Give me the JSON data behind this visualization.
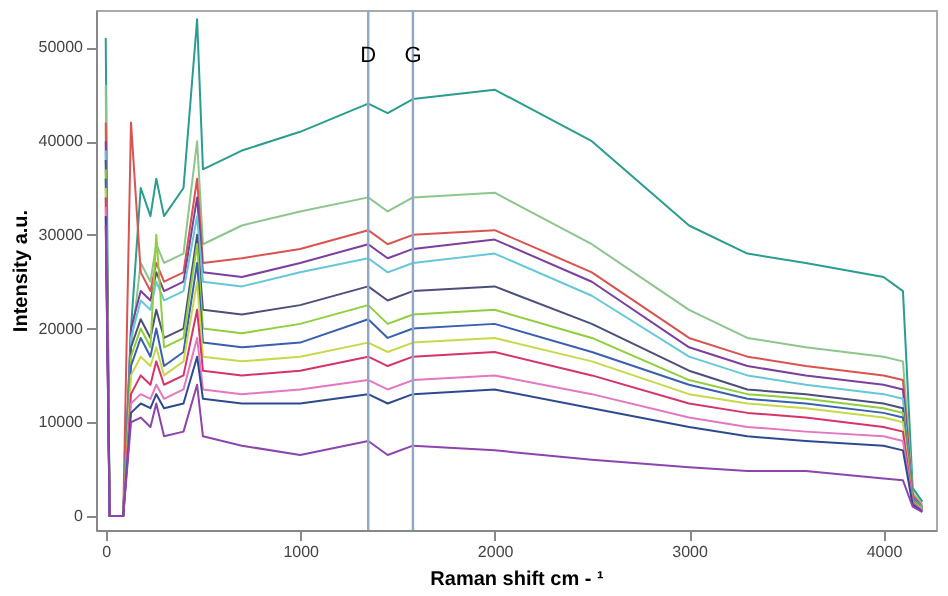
{
  "chart_data": {
    "type": "line",
    "xlabel": "Raman shift cm - ¹",
    "ylabel": "Intensity a.u.",
    "x": [
      0,
      20,
      90,
      130,
      180,
      230,
      260,
      300,
      400,
      470,
      500,
      700,
      1000,
      1350,
      1450,
      1580,
      2000,
      2500,
      3000,
      3300,
      3600,
      4000,
      4100,
      4150,
      4200
    ],
    "xlim": [
      -50,
      4270
    ],
    "xticks": [
      0,
      1000,
      2000,
      3000,
      4000
    ],
    "ylim": [
      -1500,
      54000
    ],
    "yticks": [
      0,
      10000,
      20000,
      30000,
      40000,
      50000
    ],
    "grid": false,
    "ref_lines": [
      {
        "axis": "x",
        "value": 1350,
        "label": "D",
        "color": "#8fa8c8"
      },
      {
        "axis": "x",
        "value": 1580,
        "label": "G",
        "color": "#8fa8c8"
      }
    ],
    "series": [
      {
        "color": "#2a9d8f",
        "values": [
          51000,
          0,
          0,
          20000,
          35000,
          32000,
          36000,
          32000,
          35000,
          53000,
          37000,
          39000,
          41000,
          44000,
          43000,
          44500,
          45500,
          40000,
          31000,
          28000,
          27000,
          25500,
          24000,
          3000,
          1500
        ]
      },
      {
        "color": "#8cc68c",
        "values": [
          46000,
          0,
          0,
          18000,
          27000,
          25000,
          29000,
          27000,
          28000,
          40000,
          29000,
          31000,
          32500,
          34000,
          32500,
          34000,
          34500,
          29000,
          22000,
          19000,
          18000,
          17000,
          16500,
          2500,
          1200
        ]
      },
      {
        "color": "#d9534f",
        "values": [
          42000,
          0,
          0,
          42000,
          26000,
          24000,
          27000,
          25000,
          26000,
          36000,
          27000,
          27500,
          28500,
          30500,
          29000,
          30000,
          30500,
          26000,
          19000,
          17000,
          16000,
          15000,
          14500,
          2200,
          1000
        ]
      },
      {
        "color": "#7b3f9e",
        "values": [
          40000,
          0,
          0,
          20000,
          24000,
          23000,
          26000,
          24000,
          25000,
          34000,
          26000,
          25500,
          27000,
          29000,
          27500,
          28500,
          29500,
          25000,
          18000,
          16000,
          15000,
          14000,
          13500,
          2000,
          900
        ]
      },
      {
        "color": "#66c7d9",
        "values": [
          39000,
          0,
          0,
          19000,
          23000,
          22000,
          25000,
          23000,
          24000,
          32000,
          25000,
          24500,
          26000,
          27500,
          26000,
          27000,
          28000,
          23500,
          17000,
          15000,
          14000,
          13000,
          12500,
          1900,
          900
        ]
      },
      {
        "color": "#4b4f7a",
        "values": [
          38000,
          0,
          0,
          18000,
          21000,
          19000,
          22000,
          19000,
          20000,
          30000,
          22000,
          21500,
          22500,
          24500,
          23000,
          24000,
          24500,
          20500,
          15500,
          13500,
          13000,
          12000,
          11500,
          1800,
          800
        ]
      },
      {
        "color": "#8fcf3c",
        "values": [
          37000,
          0,
          0,
          17000,
          20000,
          18000,
          30000,
          18000,
          19000,
          29000,
          20000,
          19500,
          20500,
          22500,
          20500,
          21500,
          22000,
          19000,
          14500,
          13000,
          12500,
          11500,
          11000,
          1700,
          800
        ]
      },
      {
        "color": "#3a5fb0",
        "values": [
          36000,
          0,
          0,
          16000,
          19000,
          17000,
          20000,
          16000,
          17500,
          27000,
          18500,
          18000,
          18500,
          21000,
          19000,
          20000,
          20500,
          17500,
          14000,
          12500,
          12000,
          11000,
          10500,
          1600,
          700
        ]
      },
      {
        "color": "#c7d94a",
        "values": [
          35000,
          0,
          0,
          15000,
          17000,
          16000,
          18000,
          15000,
          16500,
          25000,
          17000,
          16500,
          17000,
          18500,
          17500,
          18500,
          19000,
          16500,
          13000,
          12000,
          11500,
          10500,
          10000,
          1500,
          700
        ]
      },
      {
        "color": "#d6336c",
        "values": [
          34000,
          0,
          0,
          13000,
          15000,
          14000,
          16500,
          14000,
          15000,
          22000,
          15500,
          15000,
          15500,
          17000,
          16000,
          17000,
          17500,
          15000,
          12000,
          11000,
          10500,
          9500,
          9000,
          1400,
          600
        ]
      },
      {
        "color": "#e377c2",
        "values": [
          33000,
          0,
          0,
          12000,
          13000,
          12500,
          14000,
          12500,
          13500,
          19000,
          13500,
          13000,
          13500,
          14500,
          13500,
          14500,
          15000,
          13000,
          10500,
          9500,
          9000,
          8500,
          8000,
          1300,
          600
        ]
      },
      {
        "color": "#2e4a8f",
        "values": [
          32000,
          0,
          0,
          11000,
          12000,
          11500,
          13000,
          11500,
          12000,
          17000,
          12500,
          12000,
          12000,
          13000,
          12000,
          13000,
          13500,
          11500,
          9500,
          8500,
          8000,
          7500,
          7000,
          1200,
          500
        ]
      },
      {
        "color": "#8e44ad",
        "values": [
          31000,
          0,
          0,
          10000,
          10500,
          9500,
          12000,
          8500,
          9000,
          14000,
          8500,
          7500,
          6500,
          8000,
          6500,
          7500,
          7000,
          6000,
          5200,
          4800,
          4800,
          4000,
          3800,
          1000,
          400
        ]
      }
    ]
  }
}
